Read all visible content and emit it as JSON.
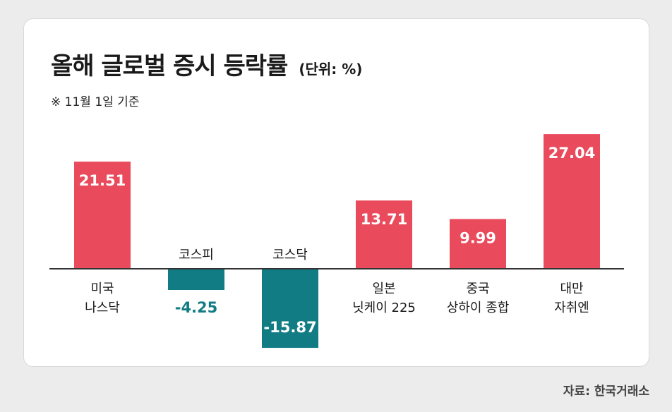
{
  "title": "올해 글로벌 증시 등락률",
  "unit_label": "(단위: %)",
  "note": "※ 11월 1일 기준",
  "source": "자료: 한국거래소",
  "colors": {
    "positive": "#e94a5c",
    "negative": "#127c84",
    "negative_text": "#127c84",
    "axis": "#333333"
  },
  "chart_data": {
    "type": "bar",
    "categories": [
      [
        "미국",
        "나스닥"
      ],
      [
        "코스피"
      ],
      [
        "코스닥"
      ],
      [
        "일본",
        "닛케이 225"
      ],
      [
        "중국",
        "상하이 종합"
      ],
      [
        "대만",
        "자취엔"
      ]
    ],
    "values": [
      21.51,
      -4.25,
      -15.87,
      13.71,
      9.99,
      27.04
    ],
    "value_labels": [
      "21.51",
      "-4.25",
      "-15.87",
      "13.71",
      "9.99",
      "27.04"
    ],
    "ylim": [
      -16,
      28
    ],
    "grid": false,
    "legend": "none"
  }
}
